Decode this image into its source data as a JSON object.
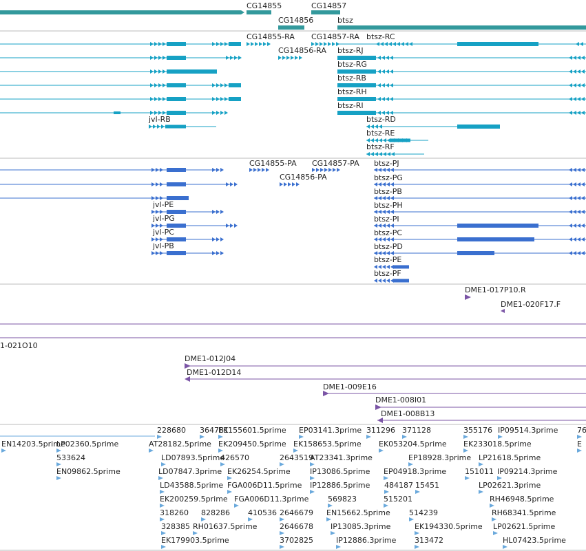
{
  "colors": {
    "gene": "#33999c",
    "transcript": "#16a1c4",
    "protein": "#3a6fcf",
    "clone": "#7b55a6",
    "est": "#6aa9dc",
    "divider": "#bbbbbb"
  },
  "tracks": {
    "genes": {
      "labels": [
        "CG14855",
        "CG14856",
        "CG14857",
        "btsz"
      ]
    },
    "transcripts": {
      "labels": [
        "CG14855-RA",
        "CG14856-RA",
        "CG14857-RA",
        "btsz-RC",
        "btsz-RJ",
        "btsz-RG",
        "btsz-RB",
        "btsz-RH",
        "btsz-RI",
        "jvl-RB",
        "btsz-RD",
        "btsz-RE",
        "btsz-RF"
      ]
    },
    "proteins": {
      "labels": [
        "CG14855-PA",
        "CG14856-PA",
        "CG14857-PA",
        "btsz-PJ",
        "btsz-PG",
        "btsz-PB",
        "btsz-PH",
        "jvl-PE",
        "btsz-PI",
        "jvl-PG",
        "jvl-PC",
        "btsz-PC",
        "jvl-PB",
        "btsz-PD",
        "btsz-PE",
        "btsz-PF"
      ]
    },
    "clones": {
      "labels": [
        "DME1-017P10.R",
        "DME1-020F17.F",
        "1-021O10",
        "DME1-012J04",
        "DME1-012D14",
        "DME1-009E16",
        "DME1-008I01",
        "DME1-008B13"
      ]
    },
    "ests": {
      "labels": [
        "228680",
        "364781",
        "EK155601.5prime",
        "EP03141.3prime",
        "311296",
        "371128",
        "355176",
        "IP09514.3prime",
        "76",
        "EN14203.5prime",
        "LP02360.5prime",
        "AT28182.5prime",
        "EK209450.5prime",
        "EK158653.5prime",
        "EK053204.5prime",
        "EK233018.5prime",
        "E",
        "533624",
        "LD07893.5prime",
        "426570",
        "2643519",
        "AT23341.3prime",
        "EP18928.3prime",
        "LP21618.5prime",
        "EN09862.5prime",
        "LD07847.3prime",
        "EK26254.5prime",
        "IP13086.5prime",
        "EP04918.3prime",
        "151011",
        "IP09214.3prime",
        "LD43588.5prime",
        "FGA006D11.5prime",
        "IP12886.5prime",
        "484187",
        "15451",
        "LP02621.3prime",
        "EK200259.5prime",
        "FGA006D11.3prime",
        "569823",
        "515201",
        "RH46948.5prime",
        "318260",
        "828286",
        "410536",
        "2646679",
        "EN15662.5prime",
        "514239",
        "RH68341.5prime",
        "328385",
        "RH01637.5prime",
        "2646678",
        "IP13085.3prime",
        "EK194330.5prime",
        "LP02621.5prime",
        "EK179903.5prime",
        "3702825",
        "IP12886.3prime",
        "313472",
        "HL07423.5prime"
      ]
    }
  }
}
